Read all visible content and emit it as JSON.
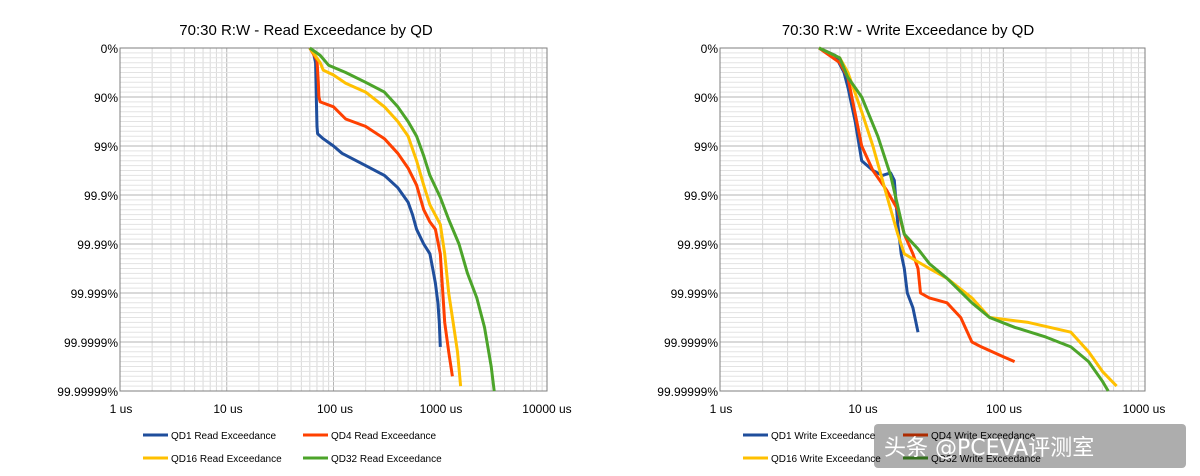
{
  "chart_data": [
    {
      "type": "line",
      "title": "70:30 R:W - Read Exceedance by QD",
      "x_scale": "log",
      "xlim": [
        1,
        10000
      ],
      "x_tick_labels": [
        "1 us",
        "10 us",
        "100 us",
        "1000 us",
        "10000 us"
      ],
      "y_tick_labels": [
        "0%",
        "90%",
        "99%",
        "99.9%",
        "99.99%",
        "99.999%",
        "99.9999%",
        "99.99999%"
      ],
      "grid": true,
      "legend_position": "bottom",
      "series": [
        {
          "name": "QD1 Read Exceedance",
          "color": "#1f4e9c",
          "points": [
            [
              60,
              0.0
            ],
            [
              65,
              0.1
            ],
            [
              68,
              0.3
            ],
            [
              69,
              1.0
            ],
            [
              70,
              1.6
            ],
            [
              71,
              1.75
            ],
            [
              80,
              1.85
            ],
            [
              100,
              2.0
            ],
            [
              120,
              2.15
            ],
            [
              200,
              2.4
            ],
            [
              300,
              2.6
            ],
            [
              400,
              2.85
            ],
            [
              500,
              3.15
            ],
            [
              550,
              3.4
            ],
            [
              600,
              3.7
            ],
            [
              700,
              4.0
            ],
            [
              800,
              4.2
            ],
            [
              850,
              4.5
            ],
            [
              900,
              4.8
            ],
            [
              950,
              5.2
            ],
            [
              980,
              5.6
            ],
            [
              1000,
              6.1
            ]
          ]
        },
        {
          "name": "QD4 Read Exceedance",
          "color": "#ff4000",
          "points": [
            [
              60,
              0.0
            ],
            [
              70,
              0.25
            ],
            [
              72,
              0.7
            ],
            [
              73,
              1.0
            ],
            [
              75,
              1.1
            ],
            [
              100,
              1.2
            ],
            [
              130,
              1.45
            ],
            [
              200,
              1.6
            ],
            [
              300,
              1.85
            ],
            [
              400,
              2.15
            ],
            [
              500,
              2.45
            ],
            [
              600,
              2.8
            ],
            [
              700,
              3.3
            ],
            [
              800,
              3.55
            ],
            [
              900,
              3.7
            ],
            [
              1000,
              4.2
            ],
            [
              1050,
              4.9
            ],
            [
              1100,
              5.6
            ],
            [
              1200,
              6.2
            ],
            [
              1300,
              6.7
            ]
          ]
        },
        {
          "name": "QD16 Read Exceedance",
          "color": "#ffc000",
          "points": [
            [
              60,
              0.0
            ],
            [
              75,
              0.3
            ],
            [
              80,
              0.45
            ],
            [
              100,
              0.55
            ],
            [
              130,
              0.72
            ],
            [
              200,
              0.9
            ],
            [
              300,
              1.2
            ],
            [
              400,
              1.5
            ],
            [
              500,
              1.8
            ],
            [
              600,
              2.3
            ],
            [
              700,
              2.8
            ],
            [
              800,
              3.2
            ],
            [
              1000,
              3.6
            ],
            [
              1100,
              4.2
            ],
            [
              1200,
              5.0
            ],
            [
              1300,
              5.5
            ],
            [
              1450,
              6.2
            ],
            [
              1550,
              6.9
            ]
          ]
        },
        {
          "name": "QD32 Read Exceedance",
          "color": "#4ca42a",
          "points": [
            [
              60,
              0.0
            ],
            [
              75,
              0.15
            ],
            [
              90,
              0.35
            ],
            [
              130,
              0.5
            ],
            [
              200,
              0.7
            ],
            [
              300,
              0.9
            ],
            [
              400,
              1.2
            ],
            [
              500,
              1.5
            ],
            [
              600,
              1.8
            ],
            [
              700,
              2.2
            ],
            [
              800,
              2.6
            ],
            [
              1000,
              3.05
            ],
            [
              1200,
              3.5
            ],
            [
              1500,
              4.0
            ],
            [
              1800,
              4.6
            ],
            [
              2200,
              5.1
            ],
            [
              2600,
              5.7
            ],
            [
              3000,
              6.5
            ],
            [
              3200,
              7.0
            ]
          ]
        }
      ]
    },
    {
      "type": "line",
      "title": "70:30 R:W - Write Exceedance by QD",
      "x_scale": "log",
      "xlim": [
        1,
        1000
      ],
      "x_tick_labels": [
        "1 us",
        "10 us",
        "100 us",
        "1000 us"
      ],
      "y_tick_labels": [
        "0%",
        "90%",
        "99%",
        "99.9%",
        "99.99%",
        "99.999%",
        "99.9999%",
        "99.99999%"
      ],
      "grid": true,
      "legend_position": "bottom",
      "series": [
        {
          "name": "QD1 Write Exceedance",
          "color": "#1f4e9c",
          "points": [
            [
              5,
              0.0
            ],
            [
              6.5,
              0.15
            ],
            [
              7.5,
              0.5
            ],
            [
              8,
              0.8
            ],
            [
              9,
              1.5
            ],
            [
              10,
              2.3
            ],
            [
              12,
              2.5
            ],
            [
              14,
              2.6
            ],
            [
              16,
              2.55
            ],
            [
              17,
              2.7
            ],
            [
              18,
              3.6
            ],
            [
              19,
              4.2
            ],
            [
              20,
              4.5
            ],
            [
              21,
              5.0
            ],
            [
              23,
              5.3
            ],
            [
              25,
              5.8
            ]
          ]
        },
        {
          "name": "QD4 Write Exceedance",
          "color": "#ff4000",
          "points": [
            [
              5,
              0.0
            ],
            [
              7,
              0.3
            ],
            [
              8,
              0.6
            ],
            [
              10,
              2.0
            ],
            [
              12,
              2.5
            ],
            [
              15,
              2.9
            ],
            [
              18,
              3.3
            ],
            [
              20,
              3.8
            ],
            [
              23,
              4.2
            ],
            [
              25,
              4.5
            ],
            [
              26,
              5.0
            ],
            [
              30,
              5.1
            ],
            [
              40,
              5.2
            ],
            [
              50,
              5.5
            ],
            [
              60,
              6.0
            ],
            [
              70,
              6.1
            ],
            [
              100,
              6.3
            ],
            [
              120,
              6.4
            ]
          ]
        },
        {
          "name": "QD16 Write Exceedance",
          "color": "#ffc000",
          "points": [
            [
              5,
              0.0
            ],
            [
              7,
              0.2
            ],
            [
              8,
              0.5
            ],
            [
              10,
              1.3
            ],
            [
              12,
              2.0
            ],
            [
              15,
              3.0
            ],
            [
              18,
              3.8
            ],
            [
              20,
              4.2
            ],
            [
              30,
              4.5
            ],
            [
              40,
              4.7
            ],
            [
              60,
              5.1
            ],
            [
              80,
              5.5
            ],
            [
              150,
              5.6
            ],
            [
              300,
              5.8
            ],
            [
              400,
              6.2
            ],
            [
              500,
              6.6
            ],
            [
              630,
              6.9
            ]
          ]
        },
        {
          "name": "QD32 Write Exceedance",
          "color": "#4ca42a",
          "points": [
            [
              5,
              0.0
            ],
            [
              7,
              0.2
            ],
            [
              8,
              0.6
            ],
            [
              10,
              1.0
            ],
            [
              13,
              1.8
            ],
            [
              16,
              2.6
            ],
            [
              20,
              3.8
            ],
            [
              25,
              4.1
            ],
            [
              30,
              4.4
            ],
            [
              40,
              4.7
            ],
            [
              60,
              5.2
            ],
            [
              80,
              5.5
            ],
            [
              120,
              5.7
            ],
            [
              200,
              5.9
            ],
            [
              300,
              6.1
            ],
            [
              400,
              6.4
            ],
            [
              500,
              6.8
            ],
            [
              550,
              7.0
            ]
          ]
        }
      ]
    }
  ],
  "watermark": "头条 @PCEVA评测室"
}
